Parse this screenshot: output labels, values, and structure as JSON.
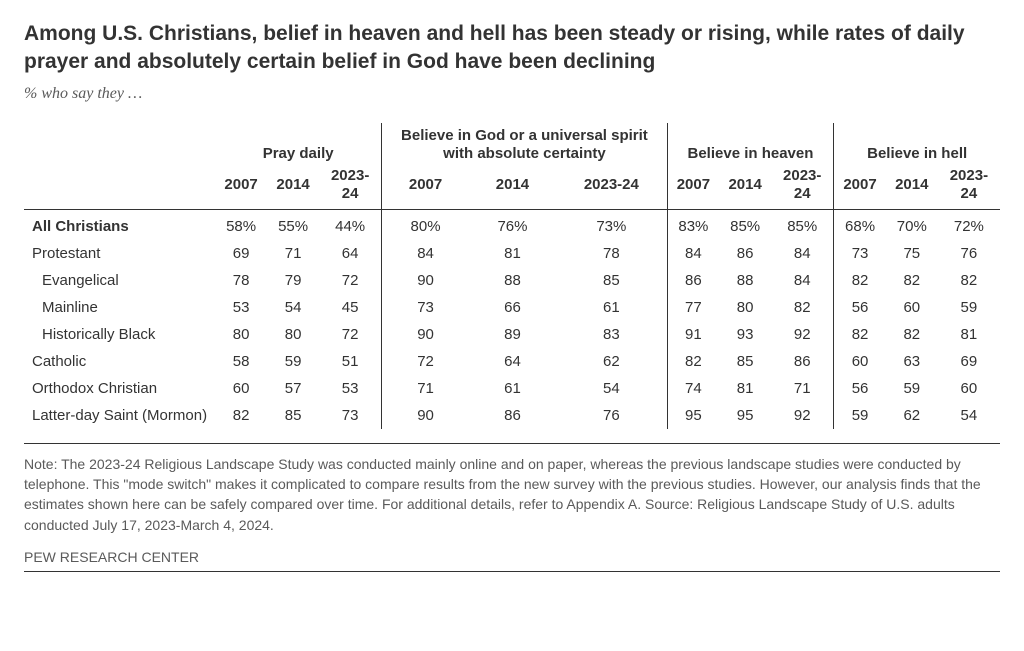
{
  "title": "Among U.S. Christians, belief in heaven and hell has been steady or rising, while rates of daily prayer and absolutely certain belief in God have been declining",
  "subtitle": "% who say they …",
  "groups": [
    {
      "label": "Pray daily"
    },
    {
      "label": "Believe in God or a universal spirit with absolute certainty"
    },
    {
      "label": "Believe in heaven"
    },
    {
      "label": "Believe in hell"
    }
  ],
  "years": [
    "2007",
    "2014",
    "2023-24"
  ],
  "rows": [
    {
      "label": "All Christians",
      "indent": 0,
      "bold": true,
      "vals": [
        "58%",
        "55%",
        "44%",
        "80%",
        "76%",
        "73%",
        "83%",
        "85%",
        "85%",
        "68%",
        "70%",
        "72%"
      ]
    },
    {
      "label": "Protestant",
      "indent": 0,
      "bold": false,
      "vals": [
        "69",
        "71",
        "64",
        "84",
        "81",
        "78",
        "84",
        "86",
        "84",
        "73",
        "75",
        "76"
      ]
    },
    {
      "label": "Evangelical",
      "indent": 1,
      "bold": false,
      "vals": [
        "78",
        "79",
        "72",
        "90",
        "88",
        "85",
        "86",
        "88",
        "84",
        "82",
        "82",
        "82"
      ]
    },
    {
      "label": "Mainline",
      "indent": 1,
      "bold": false,
      "vals": [
        "53",
        "54",
        "45",
        "73",
        "66",
        "61",
        "77",
        "80",
        "82",
        "56",
        "60",
        "59"
      ]
    },
    {
      "label": "Historically Black",
      "indent": 1,
      "bold": false,
      "vals": [
        "80",
        "80",
        "72",
        "90",
        "89",
        "83",
        "91",
        "93",
        "92",
        "82",
        "82",
        "81"
      ]
    },
    {
      "label": "Catholic",
      "indent": 0,
      "bold": false,
      "vals": [
        "58",
        "59",
        "51",
        "72",
        "64",
        "62",
        "82",
        "85",
        "86",
        "60",
        "63",
        "69"
      ]
    },
    {
      "label": "Orthodox Christian",
      "indent": 0,
      "bold": false,
      "vals": [
        "60",
        "57",
        "53",
        "71",
        "61",
        "54",
        "74",
        "81",
        "71",
        "56",
        "59",
        "60"
      ]
    },
    {
      "label": "Latter-day Saint (Mormon)",
      "indent": 0,
      "bold": false,
      "vals": [
        "82",
        "85",
        "73",
        "90",
        "86",
        "76",
        "95",
        "95",
        "92",
        "59",
        "62",
        "54"
      ]
    }
  ],
  "note": "Note: The 2023-24 Religious Landscape Study was conducted mainly online and on paper, whereas the previous landscape studies were conducted by telephone. This \"mode switch\" makes it complicated to compare results from the new survey with the previous studies. However, our analysis finds that the estimates shown here can be safely compared over time. For additional details, refer to Appendix A. Source: Religious Landscape Study of U.S. adults conducted July 17, 2023-March 4, 2024.",
  "footer": "PEW RESEARCH CENTER",
  "style": {
    "background": "#ffffff",
    "text_color": "#333333",
    "muted_color": "#5a5a5a",
    "title_fontsize": 21,
    "body_fontsize": 15,
    "note_fontsize": 14
  }
}
